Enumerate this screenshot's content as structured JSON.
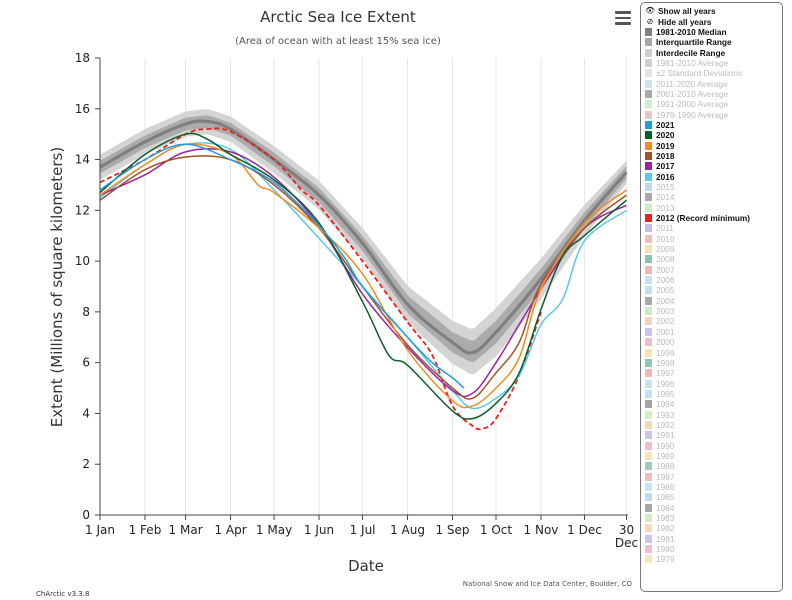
{
  "chart_data": {
    "type": "line",
    "title": "Arctic Sea Ice Extent",
    "subtitle": "(Area of ocean with at least 15% sea ice)",
    "xlabel": "Date",
    "ylabel": "Extent (Millions of square kilometers)",
    "ylim": [
      0,
      18
    ],
    "yticks": [
      0,
      2,
      4,
      6,
      8,
      10,
      12,
      14,
      16,
      18
    ],
    "xlim": [
      1,
      365
    ],
    "xticks": [
      {
        "day": 1,
        "label": "1 Jan"
      },
      {
        "day": 32,
        "label": "1 Feb"
      },
      {
        "day": 60,
        "label": "1 Mar"
      },
      {
        "day": 91,
        "label": "1 Apr"
      },
      {
        "day": 121,
        "label": "1 May"
      },
      {
        "day": 152,
        "label": "1 Jun"
      },
      {
        "day": 182,
        "label": "1 Jul"
      },
      {
        "day": 213,
        "label": "1 Aug"
      },
      {
        "day": 244,
        "label": "1 Sep"
      },
      {
        "day": 274,
        "label": "1 Oct"
      },
      {
        "day": 305,
        "label": "1 Nov"
      },
      {
        "day": 335,
        "label": "1 Dec"
      },
      {
        "day": 364,
        "label": "30",
        "label2": "Dec"
      }
    ],
    "grid": "vertical",
    "legend_position": "right",
    "median": {
      "name": "1981-2010 Median",
      "color": "#7f7f7f",
      "points": [
        [
          1,
          13.7
        ],
        [
          32,
          14.7
        ],
        [
          60,
          15.4
        ],
        [
          75,
          15.5
        ],
        [
          91,
          15.2
        ],
        [
          121,
          14.0
        ],
        [
          152,
          12.6
        ],
        [
          182,
          10.7
        ],
        [
          213,
          8.3
        ],
        [
          244,
          6.8
        ],
        [
          258,
          6.4
        ],
        [
          274,
          7.2
        ],
        [
          305,
          9.3
        ],
        [
          335,
          11.6
        ],
        [
          364,
          13.5
        ]
      ]
    },
    "interquartile_halfwidth": [
      [
        1,
        0.25
      ],
      [
        91,
        0.25
      ],
      [
        182,
        0.3
      ],
      [
        244,
        0.4
      ],
      [
        274,
        0.45
      ],
      [
        305,
        0.4
      ],
      [
        364,
        0.25
      ]
    ],
    "interdecile_halfwidth": [
      [
        1,
        0.5
      ],
      [
        91,
        0.5
      ],
      [
        182,
        0.6
      ],
      [
        244,
        0.85
      ],
      [
        274,
        0.95
      ],
      [
        305,
        0.8
      ],
      [
        364,
        0.45
      ]
    ],
    "series": [
      {
        "name": "2021",
        "color": "#1f9ee0",
        "dash": false,
        "points": [
          [
            1,
            12.8
          ],
          [
            32,
            14.0
          ],
          [
            60,
            14.6
          ],
          [
            91,
            14.0
          ],
          [
            121,
            13.1
          ],
          [
            152,
            11.4
          ],
          [
            170,
            10.1
          ],
          [
            182,
            9.0
          ],
          [
            213,
            7.0
          ],
          [
            230,
            6.0
          ],
          [
            244,
            5.4
          ],
          [
            252,
            5.0
          ]
        ]
      },
      {
        "name": "2020",
        "color": "#0b5d2a",
        "dash": false,
        "points": [
          [
            1,
            12.7
          ],
          [
            32,
            14.2
          ],
          [
            60,
            15.0
          ],
          [
            75,
            14.8
          ],
          [
            91,
            14.2
          ],
          [
            121,
            13.2
          ],
          [
            152,
            11.5
          ],
          [
            182,
            8.4
          ],
          [
            200,
            6.3
          ],
          [
            213,
            5.9
          ],
          [
            244,
            4.1
          ],
          [
            258,
            3.8
          ],
          [
            274,
            4.4
          ],
          [
            290,
            5.6
          ],
          [
            305,
            8.1
          ],
          [
            320,
            10.2
          ],
          [
            335,
            11.0
          ],
          [
            364,
            12.4
          ]
        ]
      },
      {
        "name": "2019",
        "color": "#f28c1e",
        "dash": false,
        "points": [
          [
            1,
            12.6
          ],
          [
            32,
            13.8
          ],
          [
            60,
            14.6
          ],
          [
            91,
            14.2
          ],
          [
            110,
            13.0
          ],
          [
            121,
            12.7
          ],
          [
            152,
            11.3
          ],
          [
            182,
            9.5
          ],
          [
            213,
            6.5
          ],
          [
            244,
            4.5
          ],
          [
            258,
            4.3
          ],
          [
            274,
            5.0
          ],
          [
            290,
            6.2
          ],
          [
            305,
            8.9
          ],
          [
            335,
            11.5
          ],
          [
            364,
            12.8
          ]
        ]
      },
      {
        "name": "2018",
        "color": "#a0522d",
        "dash": false,
        "points": [
          [
            1,
            12.4
          ],
          [
            32,
            13.6
          ],
          [
            60,
            14.1
          ],
          [
            91,
            14.0
          ],
          [
            121,
            13.0
          ],
          [
            152,
            11.3
          ],
          [
            182,
            9.0
          ],
          [
            213,
            6.7
          ],
          [
            244,
            5.0
          ],
          [
            258,
            4.6
          ],
          [
            274,
            5.6
          ],
          [
            290,
            6.8
          ],
          [
            305,
            9.1
          ],
          [
            335,
            11.3
          ],
          [
            364,
            12.6
          ]
        ]
      },
      {
        "name": "2017",
        "color": "#a020a0",
        "dash": false,
        "points": [
          [
            1,
            12.6
          ],
          [
            32,
            13.4
          ],
          [
            60,
            14.3
          ],
          [
            91,
            14.3
          ],
          [
            121,
            13.3
          ],
          [
            152,
            11.4
          ],
          [
            182,
            8.7
          ],
          [
            213,
            6.6
          ],
          [
            244,
            4.9
          ],
          [
            258,
            4.8
          ],
          [
            274,
            6.0
          ],
          [
            305,
            8.9
          ],
          [
            335,
            11.3
          ],
          [
            364,
            12.2
          ]
        ]
      },
      {
        "name": "2016",
        "color": "#5ac8e8",
        "dash": false,
        "points": [
          [
            1,
            12.5
          ],
          [
            32,
            13.8
          ],
          [
            60,
            14.6
          ],
          [
            91,
            14.4
          ],
          [
            121,
            12.8
          ],
          [
            152,
            10.9
          ],
          [
            182,
            9.0
          ],
          [
            213,
            7.0
          ],
          [
            244,
            4.9
          ],
          [
            258,
            4.2
          ],
          [
            274,
            4.6
          ],
          [
            290,
            5.5
          ],
          [
            305,
            7.5
          ],
          [
            320,
            8.5
          ],
          [
            335,
            10.8
          ],
          [
            364,
            12.0
          ]
        ]
      },
      {
        "name": "2012 (Record minimum)",
        "color": "#e8211b",
        "dash": true,
        "points": [
          [
            1,
            13.1
          ],
          [
            32,
            14.0
          ],
          [
            60,
            15.0
          ],
          [
            75,
            15.2
          ],
          [
            91,
            15.1
          ],
          [
            121,
            14.0
          ],
          [
            140,
            12.8
          ],
          [
            152,
            12.2
          ],
          [
            182,
            10.0
          ],
          [
            213,
            7.6
          ],
          [
            230,
            6.3
          ],
          [
            244,
            4.3
          ],
          [
            258,
            3.5
          ],
          [
            265,
            3.4
          ],
          [
            274,
            3.8
          ],
          [
            290,
            5.5
          ],
          [
            305,
            8.0
          ]
        ]
      }
    ]
  },
  "menu": {
    "icon": "hamburger-menu-icon"
  },
  "legend": {
    "items": [
      {
        "label": "Show all years",
        "kind": "action",
        "icon": "eye-icon",
        "glyph": "👁"
      },
      {
        "label": "Hide all years",
        "kind": "action",
        "icon": "eye-slash-icon",
        "glyph": "⊘"
      },
      {
        "label": "1981-2010 Median",
        "on": true,
        "color": "#7f7f7f"
      },
      {
        "label": "Interquartile Range",
        "on": true,
        "color": "#a6a6a6"
      },
      {
        "label": "Interdecile Range",
        "on": true,
        "color": "#cfcfcf"
      },
      {
        "label": "1981-2010 Average",
        "on": false,
        "color": "#d0d0d0"
      },
      {
        "label": "±2 Standard Deviations",
        "on": false,
        "color": "#e4e4e4"
      },
      {
        "label": "2011-2020 Average",
        "on": false,
        "color": "#cde2f3"
      },
      {
        "label": "2001-2010 Average",
        "on": false,
        "color": "#aaaaaa"
      },
      {
        "label": "1991-2000 Average",
        "on": false,
        "color": "#cfeccf"
      },
      {
        "label": "1979-1990 Average",
        "on": false,
        "color": "#e6c6c6"
      },
      {
        "label": "2021",
        "on": true,
        "color": "#1f9ee0"
      },
      {
        "label": "2020",
        "on": true,
        "color": "#0b5d2a"
      },
      {
        "label": "2019",
        "on": true,
        "color": "#f28c1e"
      },
      {
        "label": "2018",
        "on": true,
        "color": "#a0522d"
      },
      {
        "label": "2017",
        "on": true,
        "color": "#a020a0"
      },
      {
        "label": "2016",
        "on": true,
        "color": "#5ac8e8"
      },
      {
        "label": "2015",
        "on": false,
        "color": "#bcd9f1"
      },
      {
        "label": "2014",
        "on": false,
        "color": "#a9a9a9"
      },
      {
        "label": "2013",
        "on": false,
        "color": "#c8edbf"
      },
      {
        "label": "2012 (Record minimum)",
        "on": true,
        "color": "#e8211b"
      },
      {
        "label": "2011",
        "on": false,
        "color": "#c6bde8"
      },
      {
        "label": "2010",
        "on": false,
        "color": "#f5bcbc"
      },
      {
        "label": "2009",
        "on": false,
        "color": "#f5e0b0"
      },
      {
        "label": "2008",
        "on": false,
        "color": "#8cc4b0"
      },
      {
        "label": "2007",
        "on": false,
        "color": "#f4b5b0"
      },
      {
        "label": "2006",
        "on": false,
        "color": "#c8dff2"
      },
      {
        "label": "2005",
        "on": false,
        "color": "#bde2ee"
      },
      {
        "label": "2004",
        "on": false,
        "color": "#a9a9a9"
      },
      {
        "label": "2003",
        "on": false,
        "color": "#cfeabd"
      },
      {
        "label": "2002",
        "on": false,
        "color": "#f5d0c0"
      },
      {
        "label": "2001",
        "on": false,
        "color": "#c9c2ec"
      },
      {
        "label": "2000",
        "on": false,
        "color": "#f5bcc6"
      },
      {
        "label": "1999",
        "on": false,
        "color": "#f7e2b2"
      },
      {
        "label": "1998",
        "on": false,
        "color": "#8fc8b2"
      },
      {
        "label": "1997",
        "on": false,
        "color": "#f1b8b2"
      },
      {
        "label": "1996",
        "on": false,
        "color": "#c3e2ee"
      },
      {
        "label": "1995",
        "on": false,
        "color": "#bfe0f0"
      },
      {
        "label": "1994",
        "on": false,
        "color": "#a6a6a6"
      },
      {
        "label": "1993",
        "on": false,
        "color": "#d2edbf"
      },
      {
        "label": "1992",
        "on": false,
        "color": "#f5d6b4"
      },
      {
        "label": "1991",
        "on": false,
        "color": "#cbc2ee"
      },
      {
        "label": "1990",
        "on": false,
        "color": "#f3bcc8"
      },
      {
        "label": "1989",
        "on": false,
        "color": "#f7e6b4"
      },
      {
        "label": "1988",
        "on": false,
        "color": "#9ccdb6"
      },
      {
        "label": "1987",
        "on": false,
        "color": "#f3bcb6"
      },
      {
        "label": "1986",
        "on": false,
        "color": "#c6e3f0"
      },
      {
        "label": "1985",
        "on": false,
        "color": "#c0dcef"
      },
      {
        "label": "1984",
        "on": false,
        "color": "#a8a8a8"
      },
      {
        "label": "1983",
        "on": false,
        "color": "#d4eec4"
      },
      {
        "label": "1982",
        "on": false,
        "color": "#f6d8b8"
      },
      {
        "label": "1981",
        "on": false,
        "color": "#ccc4ee"
      },
      {
        "label": "1980",
        "on": false,
        "color": "#f4bec9"
      },
      {
        "label": "1979",
        "on": false,
        "color": "#f7e6b6"
      }
    ]
  },
  "credit": "National Snow and Ice Data Center, Boulder, CO",
  "version": "ChArctic v3.3.8"
}
